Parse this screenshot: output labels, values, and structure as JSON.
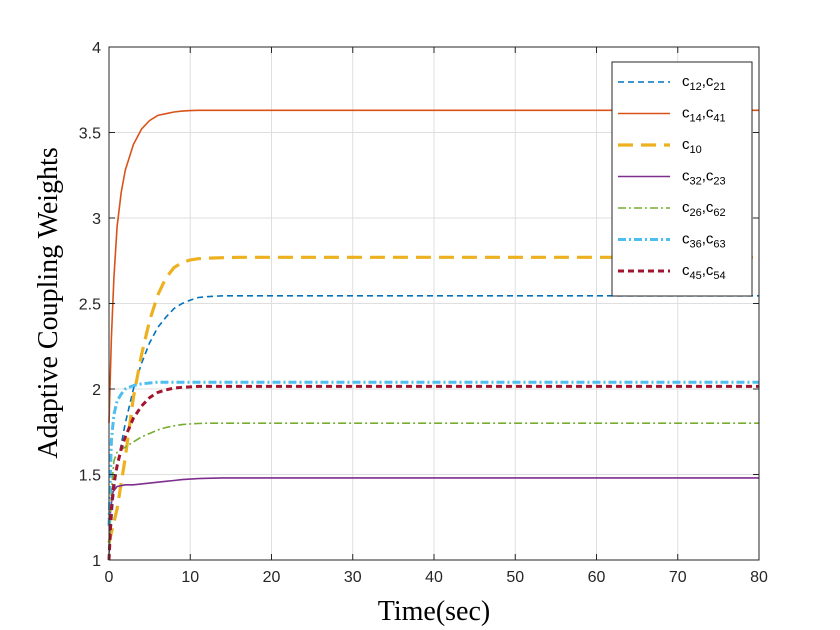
{
  "chart_data": {
    "type": "line",
    "title": "",
    "xlabel": "Time(sec)",
    "ylabel": "Adaptive Coupling Weights",
    "xlim": [
      0,
      80
    ],
    "ylim": [
      1,
      4
    ],
    "xticks": [
      0,
      10,
      20,
      30,
      40,
      50,
      60,
      70,
      80
    ],
    "yticks": [
      1,
      1.5,
      2,
      2.5,
      3,
      3.5,
      4
    ],
    "xtick_labels": [
      "0",
      "10",
      "20",
      "30",
      "40",
      "50",
      "60",
      "70",
      "80"
    ],
    "ytick_labels": [
      "1",
      "1.5",
      "2",
      "2.5",
      "3",
      "3.5",
      "4"
    ],
    "grid": true,
    "legend_position": "top-right",
    "series": [
      {
        "name": "c12,c21",
        "legend": [
          {
            "base": "c",
            "sub": "12"
          },
          {
            "base": ",c",
            "sub": "21"
          }
        ],
        "color": "#0072BD",
        "style": "dashed",
        "width": 1.6,
        "x": [
          0,
          0.5,
          1,
          2,
          3,
          4,
          5,
          6,
          7,
          8,
          9,
          10,
          11,
          12,
          14,
          16,
          20,
          30,
          40,
          50,
          60,
          70,
          80
        ],
        "y": [
          1.0,
          1.35,
          1.55,
          1.8,
          2.0,
          2.15,
          2.27,
          2.36,
          2.42,
          2.47,
          2.5,
          2.52,
          2.535,
          2.54,
          2.545,
          2.545,
          2.545,
          2.545,
          2.545,
          2.545,
          2.545,
          2.545,
          2.545
        ]
      },
      {
        "name": "c14,c41",
        "legend": [
          {
            "base": "c",
            "sub": "14"
          },
          {
            "base": ",c",
            "sub": "41"
          }
        ],
        "color": "#D95319",
        "style": "solid",
        "width": 1.6,
        "x": [
          0,
          0.3,
          0.6,
          1,
          1.5,
          2,
          3,
          4,
          5,
          6,
          7,
          8,
          9,
          10,
          11,
          12,
          14,
          16,
          20,
          30,
          40,
          50,
          60,
          70,
          80
        ],
        "y": [
          1.8,
          2.3,
          2.65,
          2.95,
          3.15,
          3.28,
          3.43,
          3.52,
          3.57,
          3.6,
          3.61,
          3.62,
          3.625,
          3.628,
          3.63,
          3.63,
          3.63,
          3.63,
          3.63,
          3.63,
          3.63,
          3.63,
          3.63,
          3.63,
          3.63
        ]
      },
      {
        "name": "c10",
        "legend": [
          {
            "base": "c",
            "sub": "10"
          }
        ],
        "color": "#EDB120",
        "style": "longdash",
        "width": 3.2,
        "x": [
          0,
          1,
          2,
          3,
          4,
          5,
          6,
          7,
          8,
          9,
          10,
          11,
          12,
          14,
          16,
          20,
          30,
          40,
          50,
          60,
          70,
          80
        ],
        "y": [
          1.1,
          1.3,
          1.6,
          1.95,
          2.2,
          2.4,
          2.55,
          2.65,
          2.71,
          2.74,
          2.755,
          2.762,
          2.765,
          2.768,
          2.77,
          2.77,
          2.77,
          2.77,
          2.77,
          2.77,
          2.77,
          2.77
        ]
      },
      {
        "name": "c32,c23",
        "legend": [
          {
            "base": "c",
            "sub": "32"
          },
          {
            "base": ",c",
            "sub": "23"
          }
        ],
        "color": "#7E2F8E",
        "style": "solid",
        "width": 1.6,
        "x": [
          0,
          0.2,
          0.5,
          1,
          2,
          3,
          4,
          5,
          6,
          7,
          8,
          9,
          10,
          11,
          12,
          14,
          16,
          20,
          30,
          40,
          50,
          60,
          70,
          80
        ],
        "y": [
          1.0,
          1.3,
          1.4,
          1.43,
          1.44,
          1.44,
          1.445,
          1.45,
          1.455,
          1.46,
          1.465,
          1.47,
          1.473,
          1.476,
          1.478,
          1.48,
          1.48,
          1.48,
          1.48,
          1.48,
          1.48,
          1.48,
          1.48,
          1.48
        ]
      },
      {
        "name": "c26,c62",
        "legend": [
          {
            "base": "c",
            "sub": "26"
          },
          {
            "base": ",c",
            "sub": "62"
          }
        ],
        "color": "#77AC30",
        "style": "dashdot",
        "width": 1.6,
        "x": [
          0,
          0.3,
          0.6,
          1,
          2,
          3,
          4,
          5,
          6,
          7,
          8,
          9,
          10,
          11,
          12,
          14,
          16,
          20,
          30,
          40,
          50,
          60,
          70,
          80
        ],
        "y": [
          1.0,
          1.4,
          1.58,
          1.63,
          1.66,
          1.69,
          1.72,
          1.74,
          1.76,
          1.775,
          1.785,
          1.792,
          1.796,
          1.798,
          1.8,
          1.8,
          1.8,
          1.8,
          1.8,
          1.8,
          1.8,
          1.8,
          1.8,
          1.8
        ]
      },
      {
        "name": "c36,c63",
        "legend": [
          {
            "base": "c",
            "sub": "36"
          },
          {
            "base": ",c",
            "sub": "63"
          }
        ],
        "color": "#4DBEEE",
        "style": "dashdot",
        "width": 3.0,
        "x": [
          0,
          0.3,
          0.6,
          1,
          1.5,
          2,
          3,
          4,
          5,
          6,
          8,
          10,
          14,
          20,
          30,
          40,
          50,
          60,
          70,
          80
        ],
        "y": [
          1.2,
          1.7,
          1.85,
          1.93,
          1.97,
          2.0,
          2.02,
          2.03,
          2.035,
          2.04,
          2.04,
          2.04,
          2.04,
          2.04,
          2.04,
          2.04,
          2.04,
          2.04,
          2.04,
          2.04
        ]
      },
      {
        "name": "c45,c54",
        "legend": [
          {
            "base": "c",
            "sub": "45"
          },
          {
            "base": ",c",
            "sub": "54"
          }
        ],
        "color": "#A2142F",
        "style": "dashed",
        "width": 3.0,
        "x": [
          0,
          0.3,
          0.6,
          1,
          1.5,
          2,
          3,
          4,
          5,
          6,
          7,
          8,
          9,
          10,
          11,
          12,
          14,
          20,
          30,
          40,
          50,
          60,
          70,
          80
        ],
        "y": [
          1.0,
          1.3,
          1.45,
          1.55,
          1.65,
          1.72,
          1.83,
          1.9,
          1.95,
          1.98,
          1.995,
          2.005,
          2.01,
          2.012,
          2.015,
          2.015,
          2.015,
          2.015,
          2.015,
          2.015,
          2.015,
          2.015,
          2.015,
          2.015
        ]
      }
    ]
  }
}
